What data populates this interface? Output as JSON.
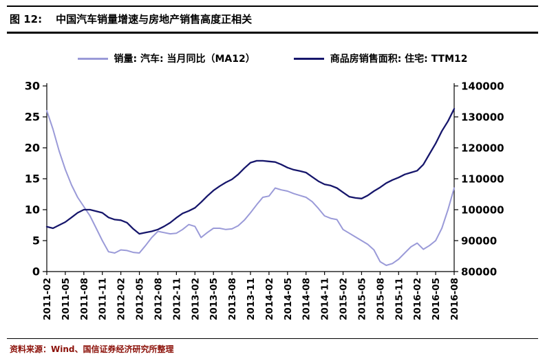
{
  "header": {
    "figure_label": "图 12:",
    "title": "中国汽车销量增速与房地产销售高度正相关"
  },
  "footer": {
    "source": "资料来源：Wind、国信证券经济研究所整理"
  },
  "legend": [
    {
      "label": "销量: 汽车: 当月同比（MA12）",
      "color": "#9a9ad8"
    },
    {
      "label": "商品房销售面积: 住宅: TTM12",
      "color": "#16166b"
    }
  ],
  "chart_data": {
    "type": "line",
    "title": "中国汽车销量增速与房地产销售高度正相关",
    "grid": false,
    "legend_position": "top",
    "x": [
      "2011-02",
      "2011-03",
      "2011-04",
      "2011-05",
      "2011-06",
      "2011-07",
      "2011-08",
      "2011-09",
      "2011-10",
      "2011-11",
      "2011-12",
      "2012-01",
      "2012-02",
      "2012-03",
      "2012-04",
      "2012-05",
      "2012-06",
      "2012-07",
      "2012-08",
      "2012-09",
      "2012-10",
      "2012-11",
      "2012-12",
      "2013-01",
      "2013-02",
      "2013-03",
      "2013-04",
      "2013-05",
      "2013-06",
      "2013-07",
      "2013-08",
      "2013-09",
      "2013-10",
      "2013-11",
      "2013-12",
      "2014-01",
      "2014-02",
      "2014-03",
      "2014-04",
      "2014-05",
      "2014-06",
      "2014-07",
      "2014-08",
      "2014-09",
      "2014-10",
      "2014-11",
      "2014-12",
      "2015-01",
      "2015-02",
      "2015-03",
      "2015-04",
      "2015-05",
      "2015-06",
      "2015-07",
      "2015-08",
      "2015-09",
      "2015-10",
      "2015-11",
      "2015-12",
      "2016-01",
      "2016-02",
      "2016-03",
      "2016-04",
      "2016-05",
      "2016-06",
      "2016-07",
      "2016-08"
    ],
    "x_tick_every": 3,
    "x_tick_labels": [
      "2011-02",
      "2011-05",
      "2011-08",
      "2011-11",
      "2012-02",
      "2012-05",
      "2012-08",
      "2012-11",
      "2013-02",
      "2013-05",
      "2013-08",
      "2013-11",
      "2014-02",
      "2014-05",
      "2014-08",
      "2014-11",
      "2015-02",
      "2015-05",
      "2015-08",
      "2015-11",
      "2016-02",
      "2016-05",
      "2016-08"
    ],
    "left_axis": {
      "min": 0,
      "max": 30,
      "step": 5,
      "ticks": [
        0,
        5,
        10,
        15,
        20,
        25,
        30
      ]
    },
    "right_axis": {
      "min": 80000,
      "max": 140000,
      "step": 10000,
      "ticks": [
        80000,
        90000,
        100000,
        110000,
        120000,
        130000,
        140000
      ]
    },
    "series": [
      {
        "name": "销量: 汽车: 当月同比（MA12）",
        "axis": "left",
        "color": "#9a9ad8",
        "values": [
          26.0,
          23.0,
          19.5,
          16.5,
          14.0,
          12.0,
          10.5,
          9.0,
          7.0,
          5.0,
          3.2,
          3.0,
          3.5,
          3.4,
          3.1,
          3.0,
          4.2,
          5.5,
          6.5,
          6.3,
          6.1,
          6.2,
          6.8,
          7.6,
          7.3,
          5.5,
          6.3,
          7.0,
          7.0,
          6.8,
          6.9,
          7.4,
          8.3,
          9.5,
          10.8,
          12.0,
          12.2,
          13.5,
          13.2,
          13.0,
          12.6,
          12.3,
          12.0,
          11.3,
          10.2,
          9.0,
          8.6,
          8.4,
          6.8,
          6.2,
          5.6,
          5.0,
          4.4,
          3.5,
          1.6,
          1.0,
          1.3,
          2.0,
          3.0,
          4.0,
          4.6,
          3.6,
          4.2,
          5.0,
          7.0,
          10.0,
          13.5
        ]
      },
      {
        "name": "商品房销售面积: 住宅: TTM12",
        "axis": "right",
        "color": "#16166b",
        "values": [
          94500,
          94000,
          95000,
          96000,
          97500,
          99000,
          100000,
          100000,
          99500,
          99000,
          97500,
          96800,
          96600,
          95800,
          93800,
          92200,
          92600,
          93000,
          93600,
          94600,
          95800,
          97400,
          98800,
          99600,
          100600,
          102400,
          104400,
          106200,
          107600,
          108800,
          109800,
          111400,
          113400,
          115200,
          115800,
          115800,
          115600,
          115400,
          114600,
          113600,
          112900,
          112500,
          112000,
          110600,
          109200,
          108200,
          107800,
          107000,
          105600,
          104200,
          103800,
          103600,
          104600,
          106000,
          107200,
          108600,
          109600,
          110400,
          111400,
          112000,
          112600,
          114600,
          118000,
          121400,
          125400,
          128600,
          132600
        ]
      }
    ]
  }
}
